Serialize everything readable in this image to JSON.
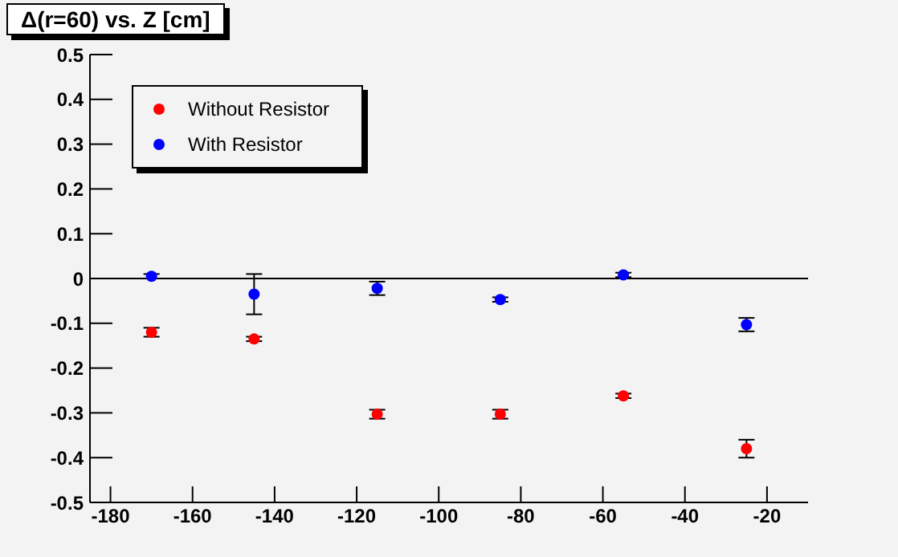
{
  "chart_data": {
    "type": "scatter",
    "title": "Δ(r=60) vs. Z [cm]",
    "x": [
      -170,
      -145,
      -115,
      -85,
      -55,
      -25
    ],
    "series": [
      {
        "name": "Without Resistor",
        "color": "#ff0000",
        "values": [
          -0.12,
          -0.135,
          -0.303,
          -0.303,
          -0.262,
          -0.38
        ],
        "errors": [
          0.01,
          0.005,
          0.01,
          0.01,
          0.005,
          0.02
        ]
      },
      {
        "name": "With Resistor",
        "color": "#0000ff",
        "values": [
          0.005,
          -0.035,
          -0.022,
          -0.047,
          0.008,
          -0.103
        ],
        "errors": [
          0.005,
          0.045,
          0.015,
          0.005,
          0.005,
          0.015
        ]
      }
    ],
    "xlim": [
      -185,
      -10
    ],
    "xticks": [
      -180,
      -160,
      -140,
      -120,
      -100,
      -80,
      -60,
      -40,
      -20
    ],
    "ylim": [
      -0.5,
      0.5
    ],
    "yticks": [
      -0.5,
      -0.4,
      -0.3,
      -0.2,
      -0.1,
      0,
      0.1,
      0.2,
      0.3,
      0.4,
      0.5
    ],
    "ref_lines": [
      {
        "axis": "y",
        "value": 0,
        "color": "#000000"
      }
    ],
    "grid": false,
    "legend": "top left",
    "marker": "circle"
  }
}
